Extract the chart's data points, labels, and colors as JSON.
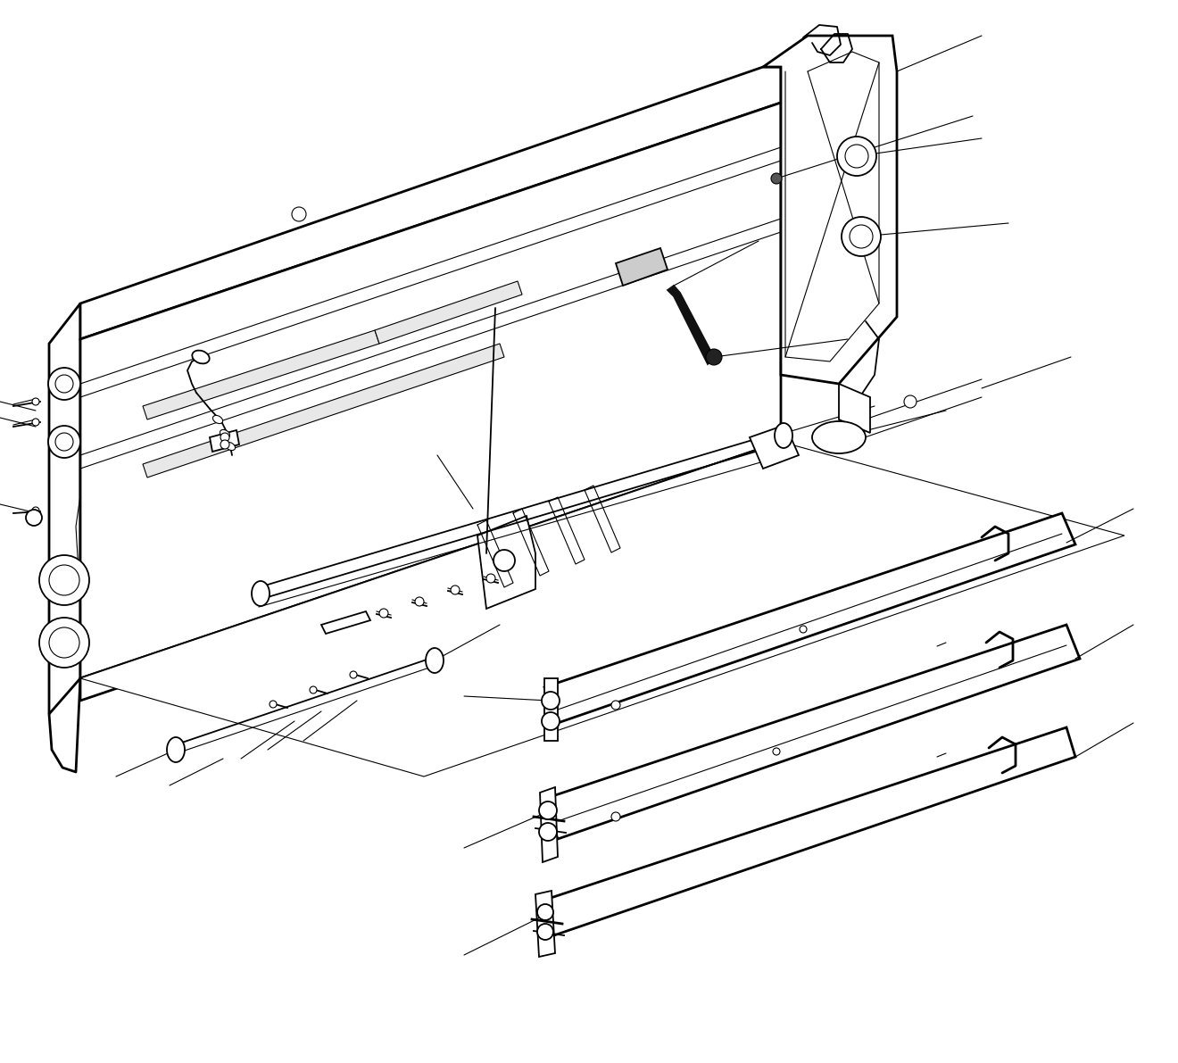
{
  "background_color": "#ffffff",
  "line_color": "#000000",
  "lw_thin": 0.8,
  "lw_med": 1.3,
  "lw_thick": 2.0,
  "fig_width": 13.2,
  "fig_height": 11.91
}
